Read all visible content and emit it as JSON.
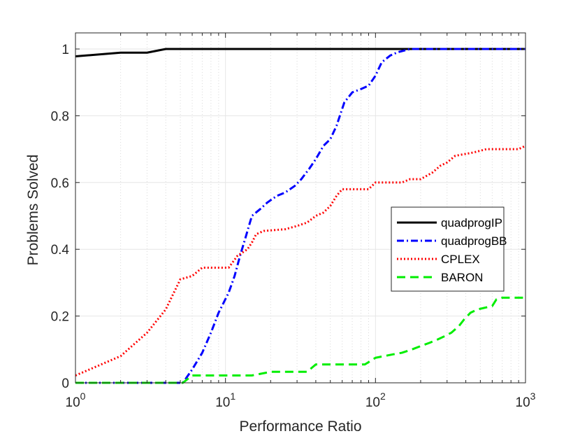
{
  "chart_data": {
    "type": "line",
    "title": "",
    "xlabel": "Performance Ratio",
    "ylabel": "Problems Solved",
    "xscale": "log",
    "xlim": [
      1,
      1000
    ],
    "ylim": [
      0,
      1.05
    ],
    "grid": true,
    "legend_position": "right",
    "x_ticks": [
      {
        "value": 1,
        "base": "10",
        "exp": "0"
      },
      {
        "value": 10,
        "base": "10",
        "exp": "1"
      },
      {
        "value": 100,
        "base": "10",
        "exp": "2"
      },
      {
        "value": 1000,
        "base": "10",
        "exp": "3"
      }
    ],
    "y_ticks": [
      {
        "value": 0,
        "label": "0"
      },
      {
        "value": 0.2,
        "label": "0.2"
      },
      {
        "value": 0.4,
        "label": "0.4"
      },
      {
        "value": 0.6,
        "label": "0.6"
      },
      {
        "value": 0.8,
        "label": "0.8"
      },
      {
        "value": 1,
        "label": "1"
      }
    ],
    "series": [
      {
        "name": "quadprogIP",
        "color": "#000000",
        "style": "solid",
        "points": [
          [
            1,
            0.978
          ],
          [
            2,
            0.989
          ],
          [
            3,
            0.989
          ],
          [
            4,
            1.0
          ],
          [
            1000,
            1.0
          ]
        ]
      },
      {
        "name": "quadprogBB",
        "color": "#0000ff",
        "style": "dashdot",
        "points": [
          [
            1,
            0
          ],
          [
            4.5,
            0
          ],
          [
            5.2,
            0
          ],
          [
            6.0,
            0.04
          ],
          [
            7.0,
            0.09
          ],
          [
            8.0,
            0.15
          ],
          [
            9.0,
            0.21
          ],
          [
            10.5,
            0.27
          ],
          [
            11.5,
            0.32
          ],
          [
            12.5,
            0.38
          ],
          [
            13.5,
            0.43
          ],
          [
            15,
            0.5
          ],
          [
            17,
            0.52
          ],
          [
            19,
            0.54
          ],
          [
            22,
            0.56
          ],
          [
            25,
            0.57
          ],
          [
            29,
            0.59
          ],
          [
            32,
            0.61
          ],
          [
            36,
            0.64
          ],
          [
            40,
            0.67
          ],
          [
            45,
            0.71
          ],
          [
            50,
            0.73
          ],
          [
            55,
            0.77
          ],
          [
            62,
            0.84
          ],
          [
            70,
            0.87
          ],
          [
            80,
            0.88
          ],
          [
            90,
            0.89
          ],
          [
            100,
            0.92
          ],
          [
            110,
            0.96
          ],
          [
            125,
            0.98
          ],
          [
            140,
            0.99
          ],
          [
            170,
            1.0
          ],
          [
            1000,
            1.0
          ]
        ]
      },
      {
        "name": "CPLEX",
        "color": "#ff0000",
        "style": "dotted",
        "points": [
          [
            1,
            0.022
          ],
          [
            2,
            0.08
          ],
          [
            3,
            0.15
          ],
          [
            4,
            0.22
          ],
          [
            5,
            0.31
          ],
          [
            6,
            0.32
          ],
          [
            7,
            0.345
          ],
          [
            9,
            0.345
          ],
          [
            10.5,
            0.345
          ],
          [
            12,
            0.38
          ],
          [
            14,
            0.4
          ],
          [
            15,
            0.42
          ],
          [
            16,
            0.445
          ],
          [
            18,
            0.455
          ],
          [
            25,
            0.46
          ],
          [
            30,
            0.47
          ],
          [
            35,
            0.48
          ],
          [
            40,
            0.5
          ],
          [
            45,
            0.51
          ],
          [
            50,
            0.53
          ],
          [
            55,
            0.56
          ],
          [
            60,
            0.58
          ],
          [
            90,
            0.58
          ],
          [
            100,
            0.6
          ],
          [
            150,
            0.6
          ],
          [
            170,
            0.61
          ],
          [
            200,
            0.61
          ],
          [
            240,
            0.63
          ],
          [
            270,
            0.65
          ],
          [
            300,
            0.66
          ],
          [
            340,
            0.68
          ],
          [
            450,
            0.69
          ],
          [
            550,
            0.7
          ],
          [
            900,
            0.7
          ],
          [
            1000,
            0.71
          ]
        ]
      },
      {
        "name": "BARON",
        "color": "#00ee00",
        "style": "dashed",
        "points": [
          [
            1,
            0
          ],
          [
            5.2,
            0
          ],
          [
            6,
            0.022
          ],
          [
            15,
            0.022
          ],
          [
            20,
            0.033
          ],
          [
            35,
            0.033
          ],
          [
            40,
            0.055
          ],
          [
            85,
            0.055
          ],
          [
            100,
            0.075
          ],
          [
            130,
            0.085
          ],
          [
            150,
            0.09
          ],
          [
            175,
            0.1
          ],
          [
            200,
            0.11
          ],
          [
            230,
            0.12
          ],
          [
            260,
            0.13
          ],
          [
            290,
            0.14
          ],
          [
            320,
            0.15
          ],
          [
            360,
            0.17
          ],
          [
            390,
            0.19
          ],
          [
            430,
            0.21
          ],
          [
            480,
            0.22
          ],
          [
            600,
            0.23
          ],
          [
            640,
            0.25
          ],
          [
            700,
            0.255
          ],
          [
            1000,
            0.255
          ]
        ]
      }
    ]
  }
}
